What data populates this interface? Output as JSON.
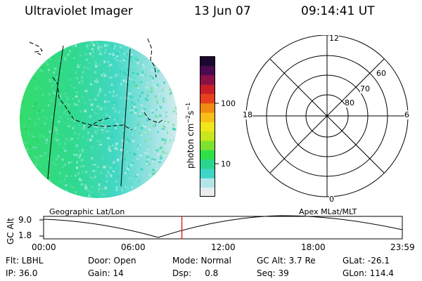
{
  "header": {
    "title": "Ultraviolet Imager",
    "date": "13 Jun 07",
    "time": "09:14:41 UT"
  },
  "colorbar": {
    "unit_prefix": "photon cm",
    "unit_exp1": "−2",
    "unit_mid": "s",
    "unit_exp2": "−1",
    "ticks": [
      "100",
      "10"
    ],
    "colors": [
      "#e8eef0",
      "#b4e6e8",
      "#3fd6c8",
      "#29d68f",
      "#2ee04a",
      "#7ce22d",
      "#c8e61c",
      "#f0e61a",
      "#f8be18",
      "#f08a10",
      "#e8401c",
      "#c81e2a",
      "#8a1048",
      "#4a0a50",
      "#1a0830"
    ]
  },
  "polar_plot": {
    "label_top": "12",
    "label_left": "18",
    "label_right": "6",
    "label_bottom": "0",
    "lat_80": "80",
    "lat_70": "70",
    "lat_60": "60"
  },
  "map_labels": {
    "left": "Geographic Lat/Lon",
    "right": "Apex MLat/MLT"
  },
  "orbit_plot": {
    "ylabel": "GC Alt",
    "ytick_top": "9.0",
    "ytick_bottom": "1.8",
    "xticks": [
      "00:00",
      "06:00",
      "12:00",
      "18:00",
      "23:59"
    ],
    "marker_time": "09:14:41"
  },
  "info": {
    "flt": "Flt: LBHL",
    "ip": "IP: 36.0",
    "door": "Door: Open",
    "gain": "Gain: 14",
    "mode": "Mode: Normal",
    "dsp": "Dsp:     0.8",
    "gcalt": "GC Alt: 3.7 Re",
    "seq": "Seq: 39",
    "glat": "GLat: -26.1",
    "glon": "GLon: 114.4"
  }
}
